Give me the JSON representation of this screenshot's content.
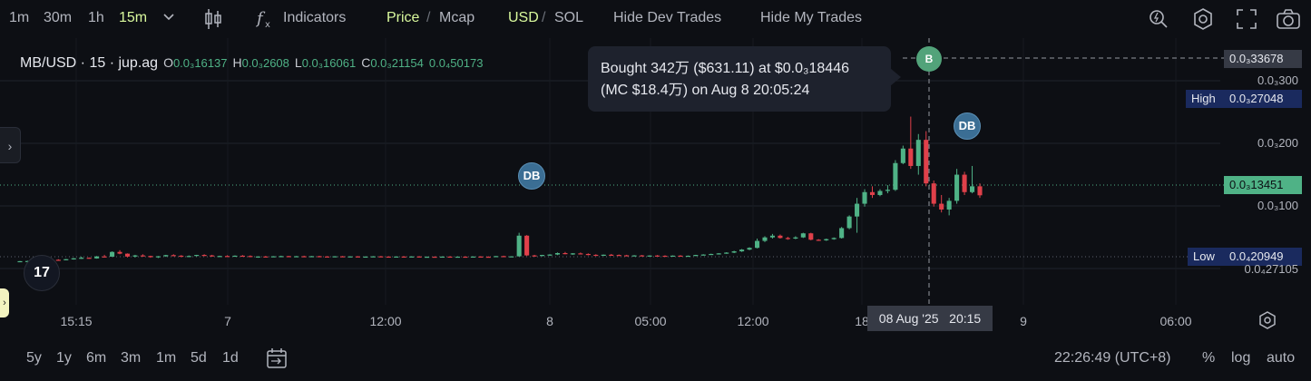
{
  "toolbar": {
    "timeframes": [
      "1m",
      "30m",
      "1h",
      "15m"
    ],
    "active_timeframe": "15m",
    "indicators_label": "Indicators",
    "price_label": "Price",
    "mcap_label": "Mcap",
    "separator": "/",
    "usd_label": "USD",
    "sol_label": "SOL",
    "hide_dev_label": "Hide Dev Trades",
    "hide_my_label": "Hide My Trades"
  },
  "legend": {
    "symbol": "MB/USD · 15 · jup.ag",
    "o_key": "O",
    "o": "0.0₃16137",
    "h_key": "H",
    "h": "0.0₃2608",
    "l_key": "L",
    "l": "0.0₃16061",
    "c_key": "C",
    "c": "0.0₃21154",
    "chg": "0.0₄50173"
  },
  "tooltip": {
    "line1": "Bought 342万 ($631.11) at $0.0₃18446",
    "line2": "(MC $18.4万) on Aug 8 20:05:24"
  },
  "price_axis": {
    "crosshair_price": "0.0₃33678",
    "labels": [
      "0.0₃300",
      "0.0₃200",
      "0.0₃100",
      "0.0₄27105"
    ],
    "high_label": "High",
    "high_value": "0.0₃27048",
    "current_price": "0.0₃13451",
    "low_label": "Low",
    "low_value": "0.0₄20949"
  },
  "time_axis": {
    "ticks": [
      "15:15",
      "7",
      "12:00",
      "8",
      "05:00",
      "12:00",
      "18",
      "9",
      "06:00"
    ],
    "crosshair_time": "08 Aug '25   20:15"
  },
  "markers": {
    "db": "DB",
    "b": "B"
  },
  "bottom": {
    "ranges": [
      "5y",
      "1y",
      "6m",
      "3m",
      "1m",
      "5d",
      "1d"
    ],
    "clock": "22:26:49 (UTC+8)",
    "percent": "%",
    "log": "log",
    "auto": "auto"
  },
  "logo_text": "17",
  "colors": {
    "bull": "#4fb286",
    "bear": "#e0404a",
    "active": "#d9f99d",
    "marker_db": "#3b6e94",
    "marker_b": "#52a37a"
  },
  "chart_data": {
    "type": "candlestick",
    "description_of_series": "15m candles MB/USD",
    "candles": [
      [
        2.05e-05,
        2.13e-05,
        2.02e-05,
        2.11e-05
      ],
      [
        2.11e-05,
        2.18e-05,
        2.08e-05,
        2.14e-05
      ],
      [
        2.14e-05,
        2.25e-05,
        2.1e-05,
        2.22e-05
      ],
      [
        2.22e-05,
        2.3e-05,
        2.19e-05,
        2.26e-05
      ],
      [
        2.26e-05,
        2.4e-05,
        2.22e-05,
        2.35e-05
      ],
      [
        2.35e-05,
        2.45e-05,
        2.28e-05,
        2.3e-05
      ],
      [
        2.3e-05,
        2.5e-05,
        2.26e-05,
        2.45e-05
      ],
      [
        2.45e-05,
        2.65e-05,
        2.38e-05,
        2.6e-05
      ],
      [
        2.6e-05,
        2.9e-05,
        2.5e-05,
        2.7e-05
      ],
      [
        2.7e-05,
        2.75e-05,
        2.55e-05,
        2.58e-05
      ],
      [
        2.58e-05,
        3e-05,
        2.54e-05,
        2.92e-05
      ],
      [
        2.92e-05,
        3.2e-05,
        2.8e-05,
        2.88e-05
      ],
      [
        2.88e-05,
        3.8e-05,
        2.84e-05,
        3.7e-05
      ],
      [
        3.7e-05,
        4e-05,
        3.3e-05,
        3.4e-05
      ],
      [
        3.4e-05,
        3.45e-05,
        2.75e-05,
        2.9e-05
      ],
      [
        2.9e-05,
        3.2e-05,
        2.75e-05,
        3.1e-05
      ],
      [
        3.1e-05,
        3.3e-05,
        2.9e-05,
        3e-05
      ],
      [
        3e-05,
        3.05e-05,
        2.7e-05,
        2.8e-05
      ],
      [
        2.8e-05,
        3e-05,
        2.65e-05,
        2.95e-05
      ],
      [
        2.95e-05,
        3.2e-05,
        2.85e-05,
        3.15e-05
      ],
      [
        3.15e-05,
        3.3e-05,
        3e-05,
        3.05e-05
      ],
      [
        3.05e-05,
        3.15e-05,
        2.8e-05,
        2.9e-05
      ],
      [
        2.9e-05,
        3.1e-05,
        2.85e-05,
        3e-05
      ],
      [
        3e-05,
        3.2e-05,
        2.95e-05,
        3.18e-05
      ],
      [
        3.18e-05,
        3.3e-05,
        3e-05,
        3.1e-05
      ],
      [
        3.1e-05,
        3.2e-05,
        2.9e-05,
        2.95e-05
      ],
      [
        2.95e-05,
        3.05e-05,
        2.85e-05,
        3e-05
      ],
      [
        3e-05,
        3.12e-05,
        2.92e-05,
        2.98e-05
      ],
      [
        2.98e-05,
        3.1e-05,
        2.88e-05,
        3.05e-05
      ],
      [
        3.05e-05,
        3.15e-05,
        2.95e-05,
        3e-05
      ],
      [
        3e-05,
        3.1e-05,
        2.8e-05,
        2.85e-05
      ],
      [
        2.85e-05,
        2.95e-05,
        2.7e-05,
        2.92e-05
      ],
      [
        2.92e-05,
        3e-05,
        2.8e-05,
        2.88e-05
      ],
      [
        2.88e-05,
        2.98e-05,
        2.82e-05,
        2.95e-05
      ],
      [
        2.95e-05,
        3.05e-05,
        2.88e-05,
        2.98e-05
      ],
      [
        2.98e-05,
        3.02e-05,
        2.85e-05,
        2.9e-05
      ],
      [
        2.9e-05,
        3e-05,
        2.84e-05,
        2.96e-05
      ],
      [
        2.96e-05,
        3.05e-05,
        2.9e-05,
        2.93e-05
      ],
      [
        2.93e-05,
        3e-05,
        2.86e-05,
        2.97e-05
      ],
      [
        2.97e-05,
        3.03e-05,
        2.9e-05,
        2.92e-05
      ],
      [
        2.92e-05,
        2.98e-05,
        2.85e-05,
        2.89e-05
      ],
      [
        2.89e-05,
        2.97e-05,
        2.83e-05,
        2.95e-05
      ],
      [
        2.95e-05,
        3e-05,
        2.87e-05,
        2.91e-05
      ],
      [
        2.91e-05,
        2.96e-05,
        2.84e-05,
        2.93e-05
      ],
      [
        2.93e-05,
        2.99e-05,
        2.86e-05,
        2.88e-05
      ],
      [
        2.88e-05,
        2.94e-05,
        2.82e-05,
        2.9e-05
      ],
      [
        2.9e-05,
        2.98e-05,
        2.86e-05,
        2.94e-05
      ],
      [
        2.94e-05,
        3e-05,
        2.88e-05,
        2.9e-05
      ],
      [
        2.9e-05,
        2.95e-05,
        2.83e-05,
        2.87e-05
      ],
      [
        2.87e-05,
        2.93e-05,
        2.81e-05,
        2.91e-05
      ],
      [
        2.91e-05,
        2.97e-05,
        2.85e-05,
        2.89e-05
      ],
      [
        2.89e-05,
        2.96e-05,
        2.8e-05,
        2.92e-05
      ],
      [
        2.92e-05,
        2.98e-05,
        2.84e-05,
        2.86e-05
      ],
      [
        2.86e-05,
        2.92e-05,
        2.78e-05,
        2.88e-05
      ],
      [
        2.88e-05,
        2.94e-05,
        2.8e-05,
        2.85e-05
      ],
      [
        2.85e-05,
        2.92e-05,
        2.79e-05,
        2.9e-05
      ],
      [
        2.9e-05,
        2.96e-05,
        2.82e-05,
        2.87e-05
      ],
      [
        2.87e-05,
        2.93e-05,
        2.81e-05,
        2.89e-05
      ],
      [
        2.89e-05,
        2.95e-05,
        2.83e-05,
        2.86e-05
      ],
      [
        2.86e-05,
        2.92e-05,
        2.79e-05,
        2.91e-05
      ],
      [
        2.91e-05,
        2.97e-05,
        2.84e-05,
        2.88e-05
      ],
      [
        2.88e-05,
        2.94e-05,
        2.82e-05,
        2.85e-05
      ],
      [
        2.85e-05,
        3e-05,
        2.8e-05,
        2.98e-05
      ],
      [
        2.98e-05,
        3.05e-05,
        2.86e-05,
        2.9e-05
      ],
      [
        2.9e-05,
        2.96e-05,
        2.84e-05,
        2.94e-05
      ],
      [
        2.94e-05,
        7e-05,
        2.9e-05,
        6.5e-05
      ],
      [
        6.5e-05,
        6.6e-05,
        3e-05,
        3.1e-05
      ],
      [
        3.1e-05,
        3.2e-05,
        2.9e-05,
        3.05e-05
      ],
      [
        3.05e-05,
        3.2e-05,
        2.95e-05,
        3.18e-05
      ],
      [
        3.18e-05,
        3.3e-05,
        3.05e-05,
        3.25e-05
      ],
      [
        3.25e-05,
        3.6e-05,
        3.15e-05,
        3.5e-05
      ],
      [
        3.5e-05,
        3.7e-05,
        3.3e-05,
        3.38e-05
      ],
      [
        3.38e-05,
        3.5e-05,
        3.2e-05,
        3.45e-05
      ],
      [
        3.45e-05,
        3.6e-05,
        3.3e-05,
        3.35e-05
      ],
      [
        3.35e-05,
        3.45e-05,
        3.1e-05,
        3.2e-05
      ],
      [
        3.2e-05,
        3.3e-05,
        3e-05,
        3.1e-05
      ],
      [
        3.1e-05,
        3.25e-05,
        3e-05,
        3.22e-05
      ],
      [
        3.22e-05,
        3.35e-05,
        3.12e-05,
        3.18e-05
      ],
      [
        3.18e-05,
        3.26e-05,
        3.05e-05,
        3.12e-05
      ],
      [
        3.12e-05,
        3.2e-05,
        2.98e-05,
        3.05e-05
      ],
      [
        3.05e-05,
        3.15e-05,
        2.96e-05,
        3.1e-05
      ],
      [
        3.1e-05,
        3.18e-05,
        3e-05,
        3.02e-05
      ],
      [
        3.02e-05,
        3.12e-05,
        2.95e-05,
        3.08e-05
      ],
      [
        3.08e-05,
        3.16e-05,
        3e-05,
        3.04e-05
      ],
      [
        3.04e-05,
        3.12e-05,
        2.95e-05,
        3e-05
      ],
      [
        3e-05,
        3.1e-05,
        2.94e-05,
        3.06e-05
      ],
      [
        3.06e-05,
        3.14e-05,
        2.98e-05,
        3.01e-05
      ],
      [
        3.01e-05,
        3.08e-05,
        2.93e-05,
        3.04e-05
      ],
      [
        3.04e-05,
        3.2e-05,
        3e-05,
        3.18e-05
      ],
      [
        3.18e-05,
        3.3e-05,
        3.1e-05,
        3.25e-05
      ],
      [
        3.25e-05,
        3.4e-05,
        3.18e-05,
        3.35e-05
      ],
      [
        3.35e-05,
        3.5e-05,
        3.25e-05,
        3.45e-05
      ],
      [
        3.45e-05,
        3.65e-05,
        3.38e-05,
        3.58e-05
      ],
      [
        3.58e-05,
        3.9e-05,
        3.5e-05,
        3.8e-05
      ],
      [
        3.8e-05,
        4.2e-05,
        3.7e-05,
        4.1e-05
      ],
      [
        4.1e-05,
        4.5e-05,
        4e-05,
        4.4e-05
      ],
      [
        4.4e-05,
        6e-05,
        4.3e-05,
        5.6e-05
      ],
      [
        5.6e-05,
        6.4e-05,
        5.4e-05,
        6.2e-05
      ],
      [
        6.2e-05,
        6.8e-05,
        6e-05,
        6.5e-05
      ],
      [
        6.5e-05,
        6.7e-05,
        6e-05,
        6.1e-05
      ],
      [
        6.1e-05,
        6.3e-05,
        5.8e-05,
        6e-05
      ],
      [
        6e-05,
        6.4e-05,
        5.9e-05,
        6.2e-05
      ],
      [
        6.2e-05,
        7e-05,
        6.1e-05,
        6.9e-05
      ],
      [
        6.9e-05,
        7e-05,
        5.7e-05,
        5.8e-05
      ],
      [
        5.8e-05,
        5.9e-05,
        5.6e-05,
        5.7e-05
      ],
      [
        5.7e-05,
        6e-05,
        5.6e-05,
        5.9e-05
      ],
      [
        5.9e-05,
        6.2e-05,
        5.8e-05,
        6.1e-05
      ],
      [
        6.1e-05,
        8e-05,
        6e-05,
        7.8e-05
      ],
      [
        7.8e-05,
        0.0001,
        7.6e-05,
        9.8e-05
      ],
      [
        9.8e-05,
        0.00013,
        7e-05,
        0.00012
      ],
      [
        0.00012,
        0.000145,
        0.000115,
        0.00014
      ],
      [
        0.00014,
        0.00015,
        0.00013,
        0.000135
      ],
      [
        0.000135,
        0.000145,
        0.000133,
        0.000142
      ],
      [
        0.000142,
        0.000152,
        0.000138,
        0.000144
      ],
      [
        0.000144,
        0.000195,
        0.000142,
        0.00019
      ],
      [
        0.00019,
        0.00022,
        0.000188,
        0.000215
      ],
      [
        0.000215,
        0.00027,
        0.00018,
        0.000185
      ],
      [
        0.000185,
        0.00024,
        0.00017,
        0.00023
      ],
      [
        0.00023,
        0.000245,
        0.00015,
        0.000155
      ],
      [
        0.000155,
        0.00016,
        0.000115,
        0.00012
      ],
      [
        0.00012,
        0.000135,
        0.000105,
        0.00011
      ],
      [
        0.00011,
        0.00013,
        0.0001,
        0.000125
      ],
      [
        0.000125,
        0.00018,
        0.00012,
        0.00017
      ],
      [
        0.00017,
        0.000175,
        0.000135,
        0.00014
      ],
      [
        0.00014,
        0.000185,
        0.000138,
        0.00015
      ],
      [
        0.00015,
        0.000155,
        0.00013,
        0.0001345
      ]
    ],
    "ylim": [
      1e-05,
      0.00036
    ]
  }
}
